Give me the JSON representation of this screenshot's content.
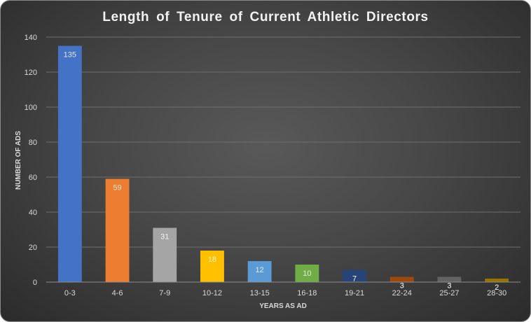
{
  "chart_data": {
    "type": "bar",
    "title": "Length of Tenure of Current Athletic Directors",
    "xlabel": "YEARS AS AD",
    "ylabel": "NUMBER OF ADS",
    "categories": [
      "0-3",
      "4-6",
      "7-9",
      "10-12",
      "13-15",
      "16-18",
      "19-21",
      "22-24",
      "25-27",
      "28-30"
    ],
    "values": [
      135,
      59,
      31,
      18,
      12,
      10,
      7,
      3,
      3,
      2
    ],
    "data_labels": [
      "135",
      "59",
      "31",
      "18",
      "12",
      "10",
      "7",
      "3",
      "3",
      "2"
    ],
    "colors": [
      "#4472c4",
      "#ed7d31",
      "#a5a5a5",
      "#ffc000",
      "#5b9bd5",
      "#70ad47",
      "#264478",
      "#9e480e",
      "#636363",
      "#997300"
    ],
    "label_colors": [
      "#dce6f5",
      "#fde3d2",
      "#f2f2f2",
      "#fff2cc",
      "#deebf7",
      "#e2efda",
      "#ffffff",
      "#ffffff",
      "#ffffff",
      "#ffffff"
    ],
    "yticks": [
      "0",
      "20",
      "40",
      "60",
      "80",
      "100",
      "120",
      "140"
    ],
    "ylim": [
      0,
      140
    ],
    "grid": true,
    "legend": "none"
  }
}
